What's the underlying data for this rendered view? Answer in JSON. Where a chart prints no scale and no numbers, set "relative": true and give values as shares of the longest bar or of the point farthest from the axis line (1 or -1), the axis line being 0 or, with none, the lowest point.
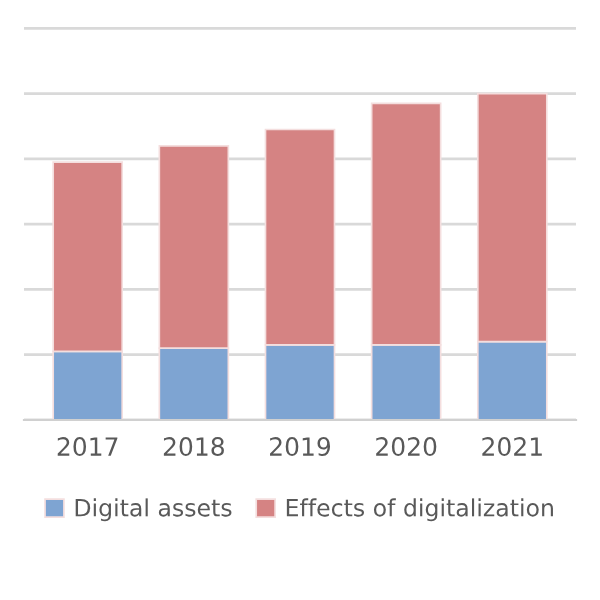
{
  "chart_data": {
    "type": "bar",
    "stacked": true,
    "relative": true,
    "categories": [
      "2017",
      "2018",
      "2019",
      "2020",
      "2021"
    ],
    "series": [
      {
        "name": "Digital assets",
        "color": "#7ea4d2",
        "values": [
          0.21,
          0.22,
          0.23,
          0.23,
          0.24
        ]
      },
      {
        "name": "Effects of digitalization",
        "color": "#d58383",
        "values": [
          0.58,
          0.62,
          0.66,
          0.74,
          0.76
        ]
      }
    ],
    "grid": "y",
    "legend": "bottom"
  }
}
